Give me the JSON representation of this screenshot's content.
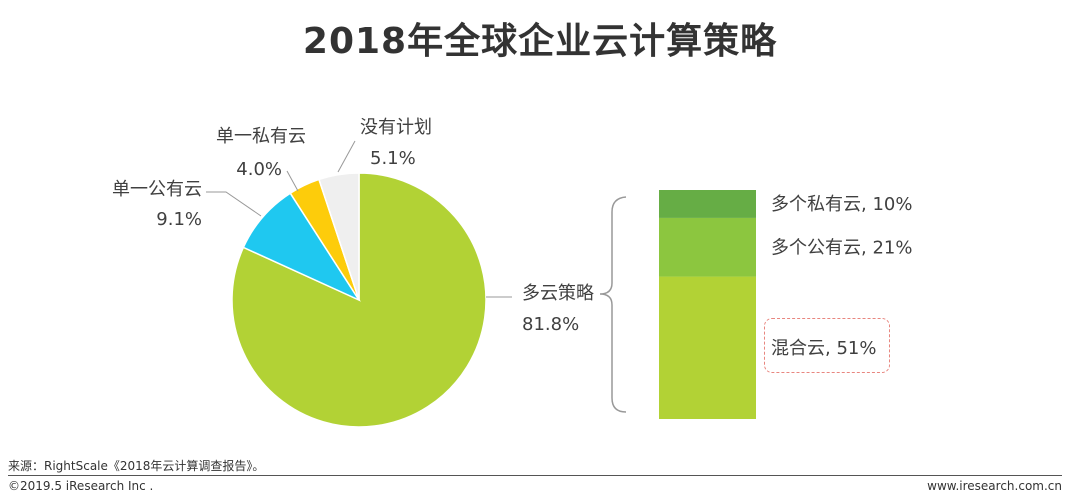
{
  "title": "2018年全球企业云计算策略",
  "chart_data": [
    {
      "type": "pie",
      "slices": [
        {
          "name": "多云策略",
          "value": 81.8,
          "label": "81.8%",
          "color": "#b2d235"
        },
        {
          "name": "单一公有云",
          "value": 9.1,
          "label": "9.1%",
          "color": "#1fc8f0"
        },
        {
          "name": "单一私有云",
          "value": 4.0,
          "label": "4.0%",
          "color": "#fdcc0b"
        },
        {
          "name": "没有计划",
          "value": 5.1,
          "label": "5.1%",
          "color": "#efefef"
        }
      ]
    },
    {
      "type": "bar",
      "stacked": true,
      "parent": "多云策略",
      "segments": [
        {
          "name": "混合云",
          "value": 51,
          "label": "混合云, 51%",
          "color": "#b2d235"
        },
        {
          "name": "多个公有云",
          "value": 21,
          "label": "多个公有云, 21%",
          "color": "#8cc63f"
        },
        {
          "name": "多个私有云",
          "value": 10,
          "label": "多个私有云, 10%",
          "color": "#66ad45"
        }
      ]
    }
  ],
  "footer": {
    "source": "来源：RightScale《2018年云计算调查报告》。",
    "copyright": "©2019.5 iResearch Inc .",
    "website": "www.iresearch.com.cn"
  }
}
